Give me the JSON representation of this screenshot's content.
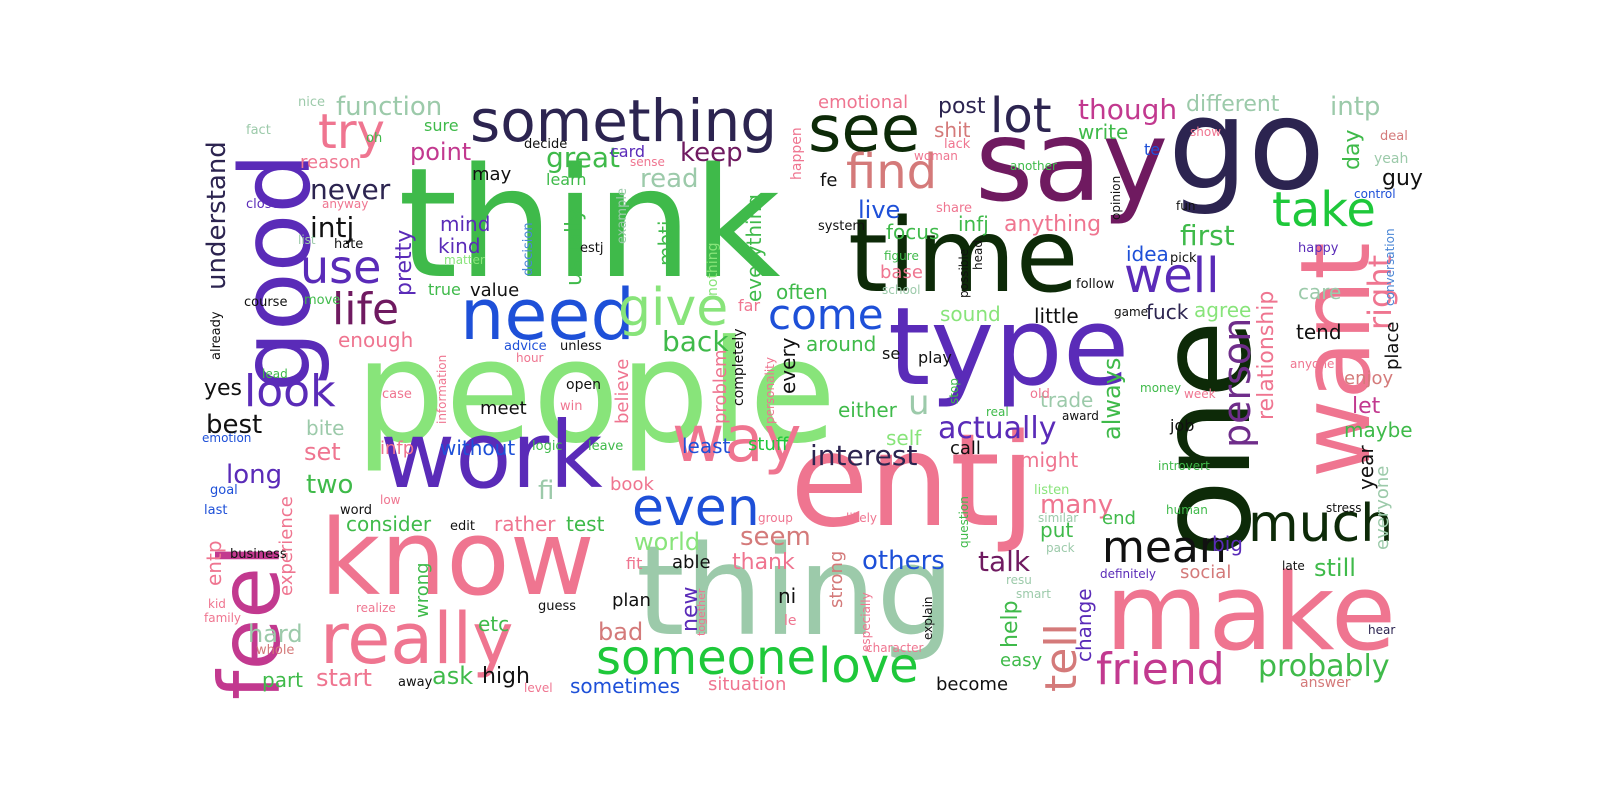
{
  "colors": {
    "teal": "#9ccaaa",
    "green": "#3fba4a",
    "lime": "#88e47a",
    "brightgreen": "#1ec83a",
    "dark": "#0d2a08",
    "navy": "#2c2450",
    "purple": "#5a2bb8",
    "violet": "#6f2d8a",
    "pink": "#ef7590",
    "magenta": "#c2398f",
    "salmon": "#d47a7a",
    "blue": "#1e50d8",
    "sky": "#4a86d6",
    "black": "#111111"
  },
  "words": [
    {
      "text": "think",
      "color": "#3fba4a"
    },
    {
      "text": "people",
      "color": "#88e47a"
    },
    {
      "text": "say",
      "color": "#6f1a60"
    },
    {
      "text": "go",
      "color": "#2c2450"
    },
    {
      "text": "time",
      "color": "#0d2a08"
    },
    {
      "text": "know",
      "color": "#ef7590"
    },
    {
      "text": "thing",
      "color": "#9ccaaa"
    },
    {
      "text": "entj",
      "color": "#ef7590"
    },
    {
      "text": "one",
      "color": "#0d2a08"
    },
    {
      "text": "want",
      "color": "#ef7590"
    },
    {
      "text": "make",
      "color": "#ef7590"
    },
    {
      "text": "type",
      "color": "#5a2bb8"
    },
    {
      "text": "work",
      "color": "#5a2bb8"
    },
    {
      "text": "good",
      "color": "#5a2bb8"
    },
    {
      "text": "feel",
      "color": "#c2398f"
    },
    {
      "text": "need",
      "color": "#1e50d8"
    },
    {
      "text": "really",
      "color": "#ef7590"
    },
    {
      "text": "something",
      "color": "#2c2450"
    },
    {
      "text": "see",
      "color": "#0d2a08"
    },
    {
      "text": "way",
      "color": "#ef7590"
    },
    {
      "text": "even",
      "color": "#1e50d8"
    },
    {
      "text": "someone",
      "color": "#1ec83a"
    },
    {
      "text": "love",
      "color": "#1ec83a"
    },
    {
      "text": "much",
      "color": "#0d2a08"
    },
    {
      "text": "mean",
      "color": "#111111"
    },
    {
      "text": "friend",
      "color": "#c2398f"
    },
    {
      "text": "take",
      "color": "#1ec83a"
    },
    {
      "text": "well",
      "color": "#5a2bb8"
    },
    {
      "text": "lot",
      "color": "#2c2450"
    },
    {
      "text": "find",
      "color": "#d47a7a"
    },
    {
      "text": "try",
      "color": "#ef7590"
    },
    {
      "text": "use",
      "color": "#5a2bb8"
    },
    {
      "text": "life",
      "color": "#6f1a60"
    },
    {
      "text": "look",
      "color": "#5a2bb8"
    },
    {
      "text": "give",
      "color": "#88e47a"
    },
    {
      "text": "come",
      "color": "#1e50d8"
    },
    {
      "text": "person",
      "color": "#6f2d8a"
    },
    {
      "text": "tell",
      "color": "#d47a7a"
    },
    {
      "text": "right",
      "color": "#ef7590"
    },
    {
      "text": "probably",
      "color": "#3fba4a"
    },
    {
      "text": "interest",
      "color": "#2c2450"
    },
    {
      "text": "actually",
      "color": "#5a2bb8"
    },
    {
      "text": "others",
      "color": "#1e50d8"
    },
    {
      "text": "talk",
      "color": "#6f1a60"
    },
    {
      "text": "start",
      "color": "#ef7590"
    },
    {
      "text": "back",
      "color": "#3fba4a"
    },
    {
      "text": "world",
      "color": "#88e47a"
    },
    {
      "text": "seem",
      "color": "#d47a7a"
    },
    {
      "text": "thank",
      "color": "#ef7590"
    },
    {
      "text": "first",
      "color": "#3fba4a"
    },
    {
      "text": "understand",
      "color": "#2c2450"
    },
    {
      "text": "function",
      "color": "#9ccaaa"
    },
    {
      "text": "though",
      "color": "#c2398f"
    },
    {
      "text": "intp",
      "color": "#9ccaaa"
    },
    {
      "text": "point",
      "color": "#c2398f"
    },
    {
      "text": "never",
      "color": "#2c2450"
    },
    {
      "text": "intj",
      "color": "#111111"
    },
    {
      "text": "great",
      "color": "#3fba4a"
    },
    {
      "text": "keep",
      "color": "#6f1a60"
    },
    {
      "text": "read",
      "color": "#9ccaaa"
    },
    {
      "text": "live",
      "color": "#1e50d8"
    },
    {
      "text": "post",
      "color": "#2c2450"
    },
    {
      "text": "different",
      "color": "#9ccaaa"
    },
    {
      "text": "emotional",
      "color": "#ef7590"
    },
    {
      "text": "write",
      "color": "#3fba4a"
    },
    {
      "text": "anything",
      "color": "#ef7590"
    },
    {
      "text": "infj",
      "color": "#3fba4a"
    },
    {
      "text": "focus",
      "color": "#3fba4a"
    },
    {
      "text": "shit",
      "color": "#d47a7a"
    },
    {
      "text": "idea",
      "color": "#1e50d8"
    },
    {
      "text": "day",
      "color": "#3fba4a"
    },
    {
      "text": "guy",
      "color": "#111111"
    },
    {
      "text": "mind",
      "color": "#5a2bb8"
    },
    {
      "text": "kind",
      "color": "#5a2bb8"
    },
    {
      "text": "pretty",
      "color": "#5a2bb8"
    },
    {
      "text": "mbti",
      "color": "#3fba4a"
    },
    {
      "text": "usually",
      "color": "#3fba4a"
    },
    {
      "text": "everything",
      "color": "#3fba4a"
    },
    {
      "text": "enough",
      "color": "#ef7590"
    },
    {
      "text": "often",
      "color": "#3fba4a"
    },
    {
      "text": "around",
      "color": "#3fba4a"
    },
    {
      "text": "every",
      "color": "#111111"
    },
    {
      "text": "best",
      "color": "#111111"
    },
    {
      "text": "yes",
      "color": "#111111"
    },
    {
      "text": "long",
      "color": "#5a2bb8"
    },
    {
      "text": "set",
      "color": "#ef7590"
    },
    {
      "text": "two",
      "color": "#3fba4a"
    },
    {
      "text": "bite",
      "color": "#9ccaaa"
    },
    {
      "text": "without",
      "color": "#1e50d8"
    },
    {
      "text": "least",
      "color": "#1e50d8"
    },
    {
      "text": "stuff",
      "color": "#1ec83a"
    },
    {
      "text": "either",
      "color": "#3fba4a"
    },
    {
      "text": "self",
      "color": "#88e47a"
    },
    {
      "text": "call",
      "color": "#111111"
    },
    {
      "text": "sound",
      "color": "#88e47a"
    },
    {
      "text": "little",
      "color": "#111111"
    },
    {
      "text": "fuck",
      "color": "#2c2450"
    },
    {
      "text": "agree",
      "color": "#88e47a"
    },
    {
      "text": "relationship",
      "color": "#ef7590"
    },
    {
      "text": "always",
      "color": "#3fba4a"
    },
    {
      "text": "trade",
      "color": "#9ccaaa"
    },
    {
      "text": "might",
      "color": "#ef7590"
    },
    {
      "text": "many",
      "color": "#ef7590"
    },
    {
      "text": "put",
      "color": "#3fba4a"
    },
    {
      "text": "end",
      "color": "#3fba4a"
    },
    {
      "text": "still",
      "color": "#3fba4a"
    },
    {
      "text": "social",
      "color": "#d47a7a"
    },
    {
      "text": "big",
      "color": "#5a2bb8"
    },
    {
      "text": "help",
      "color": "#3fba4a"
    },
    {
      "text": "change",
      "color": "#5a2bb8"
    },
    {
      "text": "easy",
      "color": "#3fba4a"
    },
    {
      "text": "tend",
      "color": "#111111"
    },
    {
      "text": "care",
      "color": "#9ccaaa"
    },
    {
      "text": "place",
      "color": "#111111"
    },
    {
      "text": "enjoy",
      "color": "#d47a7a"
    },
    {
      "text": "let",
      "color": "#c2398f"
    },
    {
      "text": "maybe",
      "color": "#3fba4a"
    },
    {
      "text": "year",
      "color": "#111111"
    },
    {
      "text": "everyone",
      "color": "#9ccaaa"
    },
    {
      "text": "ask",
      "color": "#3fba4a"
    },
    {
      "text": "high",
      "color": "#111111"
    },
    {
      "text": "sometimes",
      "color": "#1e50d8"
    },
    {
      "text": "situation",
      "color": "#ef7590"
    },
    {
      "text": "become",
      "color": "#111111"
    },
    {
      "text": "part",
      "color": "#3fba4a"
    },
    {
      "text": "hard",
      "color": "#9ccaaa"
    },
    {
      "text": "bad",
      "color": "#d47a7a"
    },
    {
      "text": "plan",
      "color": "#111111"
    },
    {
      "text": "etc",
      "color": "#3fba4a"
    },
    {
      "text": "new",
      "color": "#5a2bb8"
    },
    {
      "text": "ni",
      "color": "#111111"
    },
    {
      "text": "le",
      "color": "#ef7590"
    },
    {
      "text": "strong",
      "color": "#d47a7a"
    },
    {
      "text": "able",
      "color": "#111111"
    },
    {
      "text": "fit",
      "color": "#ef7590"
    },
    {
      "text": "test",
      "color": "#3fba4a"
    },
    {
      "text": "rather",
      "color": "#ef7590"
    },
    {
      "text": "consider",
      "color": "#3fba4a"
    },
    {
      "text": "book",
      "color": "#ef7590"
    },
    {
      "text": "fi",
      "color": "#9ccaaa"
    },
    {
      "text": "infp",
      "color": "#ef7590"
    },
    {
      "text": "entp",
      "color": "#ef7590"
    },
    {
      "text": "experience",
      "color": "#ef7590"
    },
    {
      "text": "wrong",
      "color": "#3fba4a"
    },
    {
      "text": "meet",
      "color": "#111111"
    },
    {
      "text": "believe",
      "color": "#ef7590"
    },
    {
      "text": "problem",
      "color": "#ef7590"
    },
    {
      "text": "completely",
      "color": "#111111"
    },
    {
      "text": "personality",
      "color": "#ef7590"
    },
    {
      "text": "value",
      "color": "#111111"
    },
    {
      "text": "true",
      "color": "#3fba4a"
    },
    {
      "text": "reason",
      "color": "#ef7590"
    },
    {
      "text": "sure",
      "color": "#3fba4a"
    },
    {
      "text": "may",
      "color": "#111111"
    },
    {
      "text": "learn",
      "color": "#3fba4a"
    },
    {
      "text": "card",
      "color": "#5a2bb8"
    },
    {
      "text": "decide",
      "color": "#111111"
    },
    {
      "text": "sense",
      "color": "#ef7590"
    },
    {
      "text": "estj",
      "color": "#111111"
    },
    {
      "text": "example",
      "color": "#9ccaaa"
    },
    {
      "text": "decision",
      "color": "#4a86d6"
    },
    {
      "text": "nothing",
      "color": "#88e47a"
    },
    {
      "text": "happen",
      "color": "#ef7590"
    },
    {
      "text": "fe",
      "color": "#111111"
    },
    {
      "text": "far",
      "color": "#ef7590"
    },
    {
      "text": "se",
      "color": "#111111"
    },
    {
      "text": "play",
      "color": "#111111"
    },
    {
      "text": "u",
      "color": "#9ccaaa"
    },
    {
      "text": "base",
      "color": "#ef7590"
    },
    {
      "text": "figure",
      "color": "#3fba4a"
    },
    {
      "text": "school",
      "color": "#9ccaaa"
    },
    {
      "text": "system",
      "color": "#111111"
    },
    {
      "text": "woman",
      "color": "#ef7590"
    },
    {
      "text": "lack",
      "color": "#ef7590"
    },
    {
      "text": "share",
      "color": "#ef7590"
    },
    {
      "text": "possible",
      "color": "#111111"
    },
    {
      "text": "head",
      "color": "#111111"
    },
    {
      "text": "opinion",
      "color": "#111111"
    },
    {
      "text": "another",
      "color": "#3fba4a"
    },
    {
      "text": "te",
      "color": "#1e50d8"
    },
    {
      "text": "show",
      "color": "#ef7590"
    },
    {
      "text": "fun",
      "color": "#111111"
    },
    {
      "text": "deal",
      "color": "#d47a7a"
    },
    {
      "text": "yeah",
      "color": "#9ccaaa"
    },
    {
      "text": "control",
      "color": "#1e50d8"
    },
    {
      "text": "happy",
      "color": "#5a2bb8"
    },
    {
      "text": "conversation",
      "color": "#4a86d6"
    },
    {
      "text": "pick",
      "color": "#111111"
    },
    {
      "text": "follow",
      "color": "#111111"
    },
    {
      "text": "game",
      "color": "#111111"
    },
    {
      "text": "anyone",
      "color": "#ef7590"
    },
    {
      "text": "week",
      "color": "#ef7590"
    },
    {
      "text": "money",
      "color": "#3fba4a"
    },
    {
      "text": "award",
      "color": "#111111"
    },
    {
      "text": "job",
      "color": "#111111"
    },
    {
      "text": "introvert",
      "color": "#3fba4a"
    },
    {
      "text": "real",
      "color": "#3fba4a"
    },
    {
      "text": "old",
      "color": "#ef7590"
    },
    {
      "text": "stop",
      "color": "#3fba4a"
    },
    {
      "text": "listen",
      "color": "#88e47a"
    },
    {
      "text": "similar",
      "color": "#9ccaaa"
    },
    {
      "text": "pack",
      "color": "#9ccaaa"
    },
    {
      "text": "human",
      "color": "#3fba4a"
    },
    {
      "text": "stress",
      "color": "#111111"
    },
    {
      "text": "definitely",
      "color": "#5a2bb8"
    },
    {
      "text": "late",
      "color": "#111111"
    },
    {
      "text": "hear",
      "color": "#2c2450"
    },
    {
      "text": "answer",
      "color": "#d47a7a"
    },
    {
      "text": "resu",
      "color": "#9ccaaa"
    },
    {
      "text": "smart",
      "color": "#9ccaaa"
    },
    {
      "text": "explain",
      "color": "#111111"
    },
    {
      "text": "character",
      "color": "#ef7590"
    },
    {
      "text": "especially",
      "color": "#ef7590"
    },
    {
      "text": "question",
      "color": "#3fba4a"
    },
    {
      "text": "likely",
      "color": "#ef7590"
    },
    {
      "text": "group",
      "color": "#ef7590"
    },
    {
      "text": "together",
      "color": "#ef7590"
    },
    {
      "text": "guess",
      "color": "#111111"
    },
    {
      "text": "level",
      "color": "#ef7590"
    },
    {
      "text": "away",
      "color": "#111111"
    },
    {
      "text": "whole",
      "color": "#d47a7a"
    },
    {
      "text": "realize",
      "color": "#ef7590"
    },
    {
      "text": "family",
      "color": "#ef7590"
    },
    {
      "text": "kid",
      "color": "#ef7590"
    },
    {
      "text": "business",
      "color": "#111111"
    },
    {
      "text": "word",
      "color": "#111111"
    },
    {
      "text": "last",
      "color": "#1e50d8"
    },
    {
      "text": "goal",
      "color": "#1e50d8"
    },
    {
      "text": "low",
      "color": "#ef7590"
    },
    {
      "text": "edit",
      "color": "#111111"
    },
    {
      "text": "emotion",
      "color": "#1e50d8"
    },
    {
      "text": "case",
      "color": "#ef7590"
    },
    {
      "text": "win",
      "color": "#ef7590"
    },
    {
      "text": "information",
      "color": "#ef7590"
    },
    {
      "text": "logic",
      "color": "#3fba4a"
    },
    {
      "text": "leave",
      "color": "#3fba4a"
    },
    {
      "text": "open",
      "color": "#111111"
    },
    {
      "text": "advice",
      "color": "#1e50d8"
    },
    {
      "text": "unless",
      "color": "#111111"
    },
    {
      "text": "hour",
      "color": "#ef7590"
    },
    {
      "text": "lead",
      "color": "#3fba4a"
    },
    {
      "text": "already",
      "color": "#111111"
    },
    {
      "text": "course",
      "color": "#111111"
    },
    {
      "text": "move",
      "color": "#3fba4a"
    },
    {
      "text": "list",
      "color": "#9ccaaa"
    },
    {
      "text": "hate",
      "color": "#111111"
    },
    {
      "text": "matter",
      "color": "#88e47a"
    },
    {
      "text": "close",
      "color": "#5a2bb8"
    },
    {
      "text": "anyway",
      "color": "#ef7590"
    },
    {
      "text": "fact",
      "color": "#9ccaaa"
    },
    {
      "text": "oh",
      "color": "#3fba4a"
    },
    {
      "text": "nice",
      "color": "#9ccaaa"
    }
  ]
}
